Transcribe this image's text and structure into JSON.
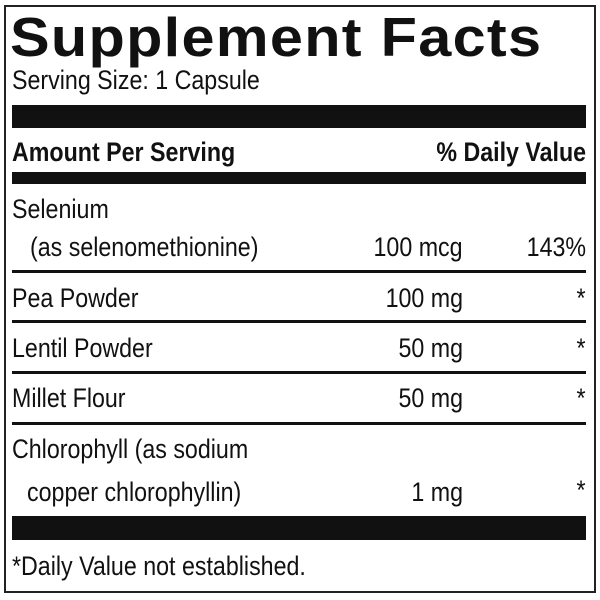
{
  "title": "Supplement Facts",
  "serving_size": "Serving Size: 1 Capsule",
  "header": {
    "amount_per_serving": "Amount Per Serving",
    "daily_value": "% Daily Value"
  },
  "rows": [
    {
      "name_line1": "Selenium",
      "name_line2": "(as selenomethionine)",
      "amount": "100 mcg",
      "dv": "143%"
    },
    {
      "name": "Pea Powder",
      "amount": "100 mg",
      "dv": "*"
    },
    {
      "name": "Lentil Powder",
      "amount": "50 mg",
      "dv": "*"
    },
    {
      "name": "Millet Flour",
      "amount": "50 mg",
      "dv": "*"
    },
    {
      "name_line1": "Chlorophyll (as sodium",
      "name_line2": "copper chlorophyllin)",
      "amount": "1 mg",
      "dv": "*"
    }
  ],
  "footnote": "*Daily Value not established."
}
